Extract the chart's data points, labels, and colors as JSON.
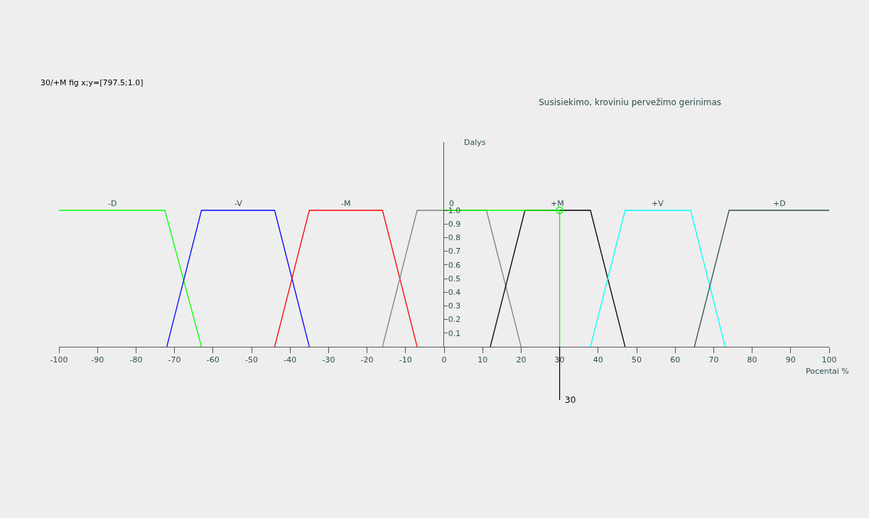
{
  "chart_data": {
    "type": "line",
    "title": "Susisiekimo, kroviniu pervežimo gerinimas",
    "xlabel": "Pocentai %",
    "ylabel": "Dalys",
    "xlim": [
      -100,
      100
    ],
    "xticks": [
      -100,
      -90,
      -80,
      -70,
      -60,
      -50,
      -40,
      -30,
      -20,
      -10,
      0,
      10,
      20,
      30,
      40,
      50,
      60,
      70,
      80,
      90,
      100
    ],
    "ylim": [
      0,
      1.5
    ],
    "yticks": [
      0.1,
      0.2,
      0.3,
      0.4,
      0.5,
      0.6,
      0.7,
      0.8,
      0.9,
      {
        "value": 1.0,
        "label": "1.0"
      }
    ],
    "grid": false,
    "legend": false,
    "marker": "none",
    "line_style": "solid",
    "annotations": [
      "30/+M fig x;y=[797.5;1.0]",
      {
        "text": "30",
        "x": 30,
        "y": 0
      }
    ],
    "series": [
      {
        "name": "-D",
        "color": "#00ff00",
        "x": [
          -100,
          -72.5,
          -63
        ],
        "values": [
          1,
          1,
          0
        ]
      },
      {
        "name": "-V",
        "color": "#0000ff",
        "x": [
          -72,
          -63,
          -44,
          -35
        ],
        "values": [
          0,
          1,
          1,
          0
        ]
      },
      {
        "name": "-M",
        "color": "#ff0000",
        "x": [
          -44,
          -35,
          -16,
          -7
        ],
        "values": [
          0,
          1,
          1,
          0
        ]
      },
      {
        "name": "0",
        "color": "#808080",
        "x": [
          -16,
          -7,
          11,
          20
        ],
        "values": [
          0,
          1,
          1,
          0
        ]
      },
      {
        "name": "+M",
        "color": "#000000",
        "x": [
          12,
          21,
          38,
          47
        ],
        "values": [
          0,
          1,
          1,
          0
        ]
      },
      {
        "name": "+V",
        "color": "#00ffff",
        "x": [
          38,
          47,
          64,
          73
        ],
        "values": [
          0,
          1,
          1,
          0
        ]
      },
      {
        "name": "+D",
        "color": "#2f4f4f",
        "x": [
          65,
          74,
          100
        ],
        "values": [
          0,
          1,
          1
        ]
      },
      {
        "color": "#00ff00",
        "x": [
          0,
          30,
          30
        ],
        "values": [
          1,
          1,
          0
        ]
      },
      {
        "type": "scatter",
        "color": "#00ff00",
        "marker": "circle",
        "x": [
          30
        ],
        "values": [
          1
        ]
      }
    ]
  }
}
